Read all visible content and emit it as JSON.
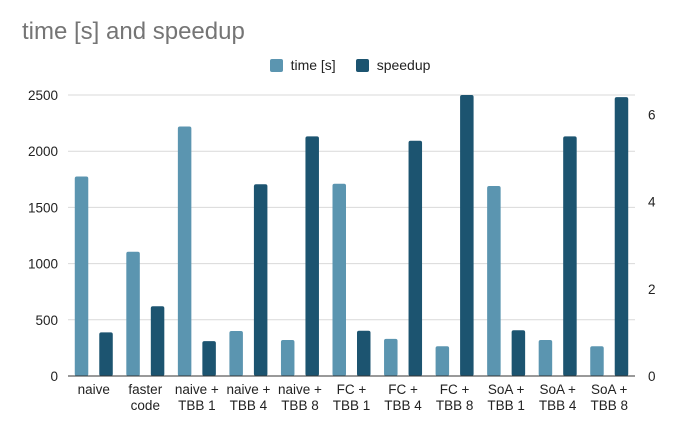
{
  "chart_data": {
    "type": "bar",
    "title": "time [s] and speedup",
    "categories": [
      [
        "naive"
      ],
      [
        "faster",
        "code"
      ],
      [
        "naive +",
        "TBB 1"
      ],
      [
        "naive +",
        "TBB 4"
      ],
      [
        "naive +",
        "TBB 8"
      ],
      [
        "FC +",
        "TBB 1"
      ],
      [
        "FC +",
        "TBB 4"
      ],
      [
        "FC +",
        "TBB 8"
      ],
      [
        "SoA +",
        "TBB 1"
      ],
      [
        "SoA +",
        "TBB 4"
      ],
      [
        "SoA +",
        "TBB 8"
      ]
    ],
    "series": [
      {
        "name": "time [s]",
        "axis": "left",
        "color": "#5b95b0",
        "values": [
          1775,
          1105,
          2220,
          400,
          320,
          1710,
          330,
          265,
          1690,
          320,
          265
        ]
      },
      {
        "name": "speedup",
        "axis": "right",
        "color": "#1c5470",
        "values": [
          1.0,
          1.6,
          0.8,
          4.4,
          5.5,
          1.04,
          5.4,
          6.45,
          1.05,
          5.5,
          6.4
        ]
      }
    ],
    "y_left": {
      "min": 0,
      "max": 2500,
      "ticks": [
        0,
        500,
        1000,
        1500,
        2000,
        2500
      ]
    },
    "y_right": {
      "min": 0,
      "max": 6.45,
      "ticks": [
        0,
        2,
        4,
        6
      ]
    },
    "grid": true,
    "legend_position": "top-center"
  }
}
